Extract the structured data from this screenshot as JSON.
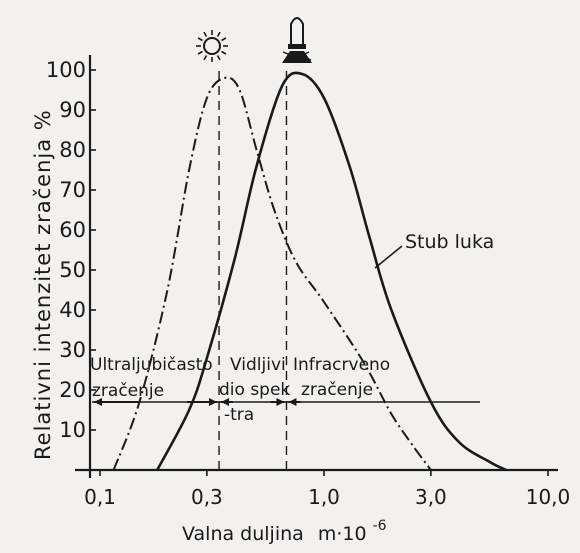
{
  "chart_data": {
    "type": "line",
    "xlabel": "Valna duljina",
    "xunit_base": "m·10",
    "xunit_exp": "-6",
    "ylabel": "Relativni intenzitet zračenja %",
    "x_scale": "log",
    "xlim": [
      0.1,
      10.0
    ],
    "ylim": [
      0,
      100
    ],
    "x_ticks": [
      "0,1",
      "0,3",
      "1,0",
      "3,0",
      "10,0"
    ],
    "x_tick_values": [
      0.1,
      0.3,
      1.0,
      3.0,
      10.0
    ],
    "y_ticks": [
      10,
      20,
      30,
      40,
      50,
      60,
      70,
      80,
      90,
      100
    ],
    "grid": false,
    "series": [
      {
        "name": "",
        "style": "dash-dot",
        "icon": "sun-icon",
        "x": [
          0.115,
          0.15,
          0.2,
          0.25,
          0.3,
          0.36,
          0.42,
          0.5,
          0.6,
          0.75,
          1.0,
          1.5,
          2.0,
          2.5,
          3.0
        ],
        "y": [
          0,
          17,
          45,
          75,
          93,
          98,
          95,
          80,
          65,
          52,
          42,
          27,
          14,
          6,
          0
        ]
      },
      {
        "name": "Stub luka",
        "style": "solid",
        "icon": "lamp-icon",
        "x": [
          0.18,
          0.25,
          0.3,
          0.4,
          0.5,
          0.65,
          0.8,
          1.0,
          1.3,
          1.6,
          2.0,
          3.0,
          4.0,
          5.5,
          6.5
        ],
        "y": [
          0,
          15,
          28,
          53,
          76,
          96,
          99,
          93,
          76,
          58,
          40,
          17,
          7,
          2,
          0
        ]
      }
    ],
    "marker_lines": [
      0.34,
      0.68
    ],
    "regions": [
      {
        "name": "ultraviolet",
        "lines": [
          "Ultraljubičasto",
          "zračenje"
        ]
      },
      {
        "name": "visible",
        "lines": [
          "Vidljivi",
          "dio spek",
          "-tra"
        ]
      },
      {
        "name": "infrared",
        "lines": [
          "Infracrveno",
          "zračenje"
        ]
      }
    ],
    "region_arrow_level": 17
  }
}
